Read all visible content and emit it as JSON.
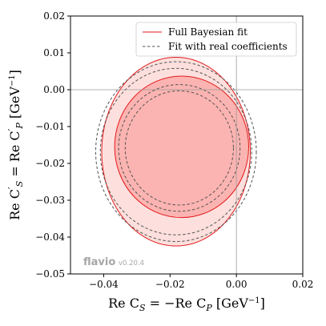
{
  "chart_data": {
    "type": "contour",
    "xlabel": "Re C_S = −Re C_P [GeV⁻¹]",
    "ylabel": "Re C′_S = Re C′_P [GeV⁻¹]",
    "xlim": [
      -0.05,
      0.02
    ],
    "ylim": [
      -0.05,
      0.02
    ],
    "xticks": [
      -0.04,
      -0.02,
      0.0,
      0.02
    ],
    "xtick_labels": [
      "−0.04",
      "−0.02",
      "0.00",
      "0.02"
    ],
    "yticks": [
      -0.05,
      -0.04,
      -0.03,
      -0.02,
      -0.01,
      0.0,
      0.01,
      0.02
    ],
    "ytick_labels": [
      "−0.05",
      "−0.04",
      "−0.03",
      "−0.02",
      "−0.01",
      "0.00",
      "0.01",
      "0.02"
    ],
    "reference_lines": {
      "x": 0.0,
      "y": 0.0
    },
    "legend_position": "top-right",
    "series": [
      {
        "name": "Full Bayesian fit",
        "style": "solid",
        "color": "#e31a1c",
        "fill_colors": [
          "#fde0dd",
          "#fbb4b1"
        ],
        "contours": [
          {
            "level": "outer",
            "center": [
              -0.0182,
              -0.0168
            ],
            "semi_axes": [
              0.0224,
              0.0256
            ]
          },
          {
            "level": "inner",
            "center": [
              -0.0165,
              -0.0155
            ],
            "semi_axes": [
              0.0202,
              0.0192
            ]
          }
        ]
      },
      {
        "name": "Fit with real coefficients",
        "style": "dashed",
        "color": "#555555",
        "contours": [
          {
            "level": "outer-1",
            "center": [
              -0.0182,
              -0.0168
            ],
            "semi_axes": [
              0.0242,
              0.0244
            ]
          },
          {
            "level": "outer-2",
            "center": [
              -0.0182,
              -0.0168
            ],
            "semi_axes": [
              0.0228,
              0.0226
            ]
          },
          {
            "level": "inner-1",
            "center": [
              -0.0172,
              -0.0158
            ],
            "semi_axes": [
              0.0183,
              0.0172
            ]
          },
          {
            "level": "inner-2",
            "center": [
              -0.0172,
              -0.0158
            ],
            "semi_axes": [
              0.0163,
              0.0155
            ]
          }
        ]
      }
    ]
  },
  "xlabel_text": {
    "main": "Re C",
    "sub": "S",
    "mid": " = −Re C",
    "sub2": "P",
    "end": " [GeV",
    "sup": "−1",
    "close": "]"
  },
  "ylabel_text": {
    "main": "Re C",
    "sub": "S",
    "prime": "′",
    "mid": " = Re C",
    "sub2": "P",
    "prime2": "′",
    "end": " [GeV",
    "sup": "−1",
    "close": "]"
  },
  "watermark": {
    "brand": "flavio",
    "version": "v0.20.4"
  }
}
